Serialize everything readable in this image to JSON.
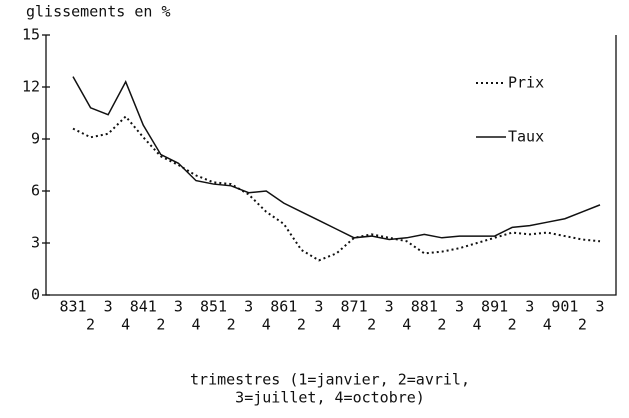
{
  "chart_data": {
    "type": "line",
    "ylabel": "glissements en %",
    "xlabel": [
      "trimestres (1=janvier, 2=avril,",
      "3=juillet, 4=octobre)"
    ],
    "categories": [
      "831",
      "2",
      "3",
      "4",
      "841",
      "2",
      "3",
      "4",
      "851",
      "2",
      "3",
      "4",
      "861",
      "2",
      "3",
      "4",
      "871",
      "2",
      "3",
      "4",
      "881",
      "2",
      "3",
      "4",
      "891",
      "2",
      "3",
      "4",
      "901",
      "2",
      "3"
    ],
    "series": [
      {
        "name": "Prix",
        "color": "#111111",
        "dash": "dotted",
        "values": [
          9.6,
          9.1,
          9.3,
          10.3,
          9.1,
          8.0,
          7.5,
          6.9,
          6.5,
          6.4,
          5.8,
          4.8,
          4.1,
          2.6,
          2.0,
          2.4,
          3.3,
          3.5,
          3.3,
          3.1,
          2.4,
          2.5,
          2.7,
          3.0,
          3.3,
          3.6,
          3.5,
          3.6,
          3.4,
          3.2,
          3.1
        ]
      },
      {
        "name": "Taux",
        "color": "#111111",
        "dash": "solid",
        "values": [
          12.6,
          10.8,
          10.4,
          12.3,
          9.8,
          8.1,
          7.6,
          6.6,
          6.4,
          6.3,
          5.9,
          6.0,
          5.3,
          4.8,
          4.3,
          3.8,
          3.3,
          3.4,
          3.2,
          3.3,
          3.5,
          3.3,
          3.4,
          3.4,
          3.4,
          3.9,
          4.0,
          4.2,
          4.4,
          4.8,
          5.2
        ]
      }
    ],
    "ylim": [
      0,
      15
    ],
    "yticks": [
      0,
      3,
      6,
      9,
      12,
      15
    ],
    "grid": false,
    "legend": "upper right"
  }
}
